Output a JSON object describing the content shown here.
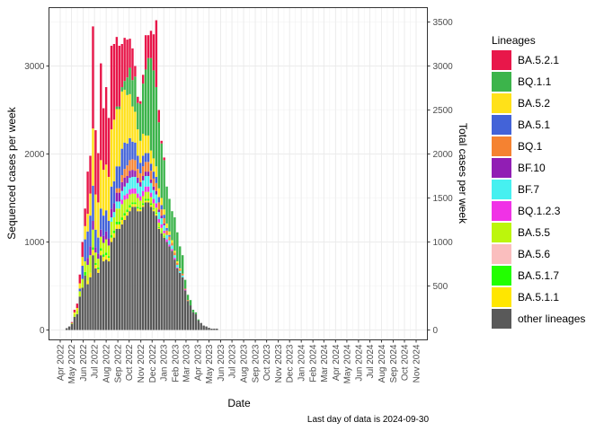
{
  "chart_data": {
    "type": "bar",
    "stacked": true,
    "xlabel": "Date",
    "ylabel": "Sequenced cases per week",
    "y2label": "Total cases per week",
    "caption": "Last day of data is 2024-09-30",
    "ylim": [
      0,
      3600
    ],
    "y_ticks": [
      0,
      1000,
      2000,
      3000
    ],
    "y2_ticks": [
      0,
      500,
      1000,
      1500,
      2000,
      2500,
      3000,
      3500
    ],
    "x_tick_labels": [
      "Apr 2022",
      "May 2022",
      "Jun 2022",
      "Jul 2022",
      "Aug 2022",
      "Sep 2022",
      "Oct 2022",
      "Nov 2022",
      "Dec 2022",
      "Jan 2023",
      "Feb 2023",
      "Mar 2023",
      "Apr 2023",
      "May 2023",
      "Jun 2023",
      "Jul 2023",
      "Aug 2023",
      "Sep 2023",
      "Oct 2023",
      "Nov 2023",
      "Dec 2023",
      "Jan 2024",
      "Feb 2024",
      "Mar 2024",
      "Apr 2024",
      "May 2024",
      "Jun 2024",
      "Jul 2024",
      "Aug 2024",
      "Sep 2024",
      "Oct 2024",
      "Nov 2024"
    ],
    "grid": true,
    "legend_position": "right",
    "legend_title": "Lineages",
    "colors": {
      "BA.5.2.1": "#e8174a",
      "BQ.1.1": "#3cb44b",
      "BA.5.2": "#ffe119",
      "BA.5.1": "#4363d8",
      "BQ.1": "#f58231",
      "BF.10": "#911eb4",
      "BF.7": "#46f0f0",
      "BQ.1.2.3": "#f032e6",
      "BA.5.5": "#bcf60c",
      "BA.5.6": "#fabebe",
      "BA.5.1.7": "#22ff00",
      "BA.5.1.1": "#ffe600",
      "other lineages": "#595959"
    },
    "series_order": [
      "other lineages",
      "BA.5.1.1",
      "BA.5.1.7",
      "BA.5.6",
      "BA.5.5",
      "BQ.1.2.3",
      "BF.7",
      "BF.10",
      "BQ.1",
      "BA.5.1",
      "BA.5.2",
      "BQ.1.1",
      "BA.5.2.1"
    ],
    "legend_order": [
      "BA.5.2.1",
      "BQ.1.1",
      "BA.5.2",
      "BA.5.1",
      "BQ.1",
      "BF.10",
      "BF.7",
      "BQ.1.2.3",
      "BA.5.5",
      "BA.5.6",
      "BA.5.1.7",
      "BA.5.1.1",
      "other lineages"
    ],
    "weeks": [
      {
        "date": "2022-04-18",
        "values": {
          "other lineages": 20
        }
      },
      {
        "date": "2022-04-25",
        "values": {
          "other lineages": 40
        }
      },
      {
        "date": "2022-05-02",
        "values": {
          "other lineages": 70,
          "BA.5.5": 10,
          "BA.5.2.1": 10
        }
      },
      {
        "date": "2022-05-09",
        "values": {
          "other lineages": 150,
          "BA.5.5": 30,
          "BA.5.2": 20,
          "BA.5.2.1": 30
        }
      },
      {
        "date": "2022-05-16",
        "values": {
          "other lineages": 180,
          "BA.5.5": 40,
          "BA.5.2": 30,
          "BA.5.2.1": 50
        }
      },
      {
        "date": "2022-05-23",
        "values": {
          "other lineages": 380,
          "BA.5.5": 60,
          "BA.5.2": 60,
          "BA.5.1": 30,
          "BA.5.2.1": 100
        }
      },
      {
        "date": "2022-05-30",
        "values": {
          "other lineages": 480,
          "BA.5.5": 100,
          "BA.5.2": 100,
          "BA.5.1": 150,
          "BA.5.2.1": 170
        }
      },
      {
        "date": "2022-06-06",
        "values": {
          "other lineages": 620,
          "BA.5.5": 120,
          "BA.5.1.7": 40,
          "BA.5.2": 150,
          "BA.5.1": 250,
          "BA.5.2.1": 200
        }
      },
      {
        "date": "2022-06-13",
        "values": {
          "other lineages": 520,
          "BA.5.1.1": 40,
          "BA.5.5": 180,
          "BF.10": 80,
          "BA.5.2": 200,
          "BA.5.1": 300,
          "BA.5.2.1": 480
        }
      },
      {
        "date": "2022-06-20",
        "values": {
          "other lineages": 600,
          "BA.5.1.1": 50,
          "BA.5.5": 200,
          "BF.10": 100,
          "BA.5.2": 250,
          "BA.5.1": 350,
          "BA.5.2.1": 430
        }
      },
      {
        "date": "2022-06-27",
        "values": {
          "other lineages": 850,
          "BA.5.1.1": 60,
          "BA.5.1.7": 30,
          "BA.5.5": 200,
          "BF.10": 100,
          "BA.5.2": 650,
          "BA.5.1": 400,
          "BA.5.2.1": 1160
        }
      },
      {
        "date": "2022-07-04",
        "values": {
          "other lineages": 700,
          "BA.5.1.1": 40,
          "BA.5.1.7": 20,
          "BA.5.5": 120,
          "BF.10": 60,
          "BA.5.2": 400,
          "BA.5.1": 200,
          "BA.5.2.1": 730
        }
      },
      {
        "date": "2022-07-11",
        "values": {
          "other lineages": 650,
          "BA.5.1.1": 40,
          "BA.5.1.7": 20,
          "BA.5.5": 100,
          "BF.10": 60,
          "BA.5.2": 400,
          "BA.5.1": 180,
          "BA.5.2.1": 560
        }
      },
      {
        "date": "2022-07-18",
        "values": {
          "other lineages": 850,
          "BA.5.1.1": 50,
          "BA.5.1.7": 30,
          "BA.5.5": 130,
          "BF.10": 80,
          "BA.5.2": 550,
          "BA.5.1": 240,
          "BA.5.2.1": 1100
        }
      },
      {
        "date": "2022-07-25",
        "values": {
          "other lineages": 780,
          "BA.5.1.1": 50,
          "BA.5.1.7": 30,
          "BA.5.5": 130,
          "BF.10": 80,
          "BA.5.2": 520,
          "BA.5.1": 230,
          "BA.5.2.1": 700
        }
      },
      {
        "date": "2022-08-01",
        "values": {
          "other lineages": 800,
          "BA.5.1.1": 50,
          "BA.5.1.7": 30,
          "BA.5.5": 150,
          "BF.10": 90,
          "BA.5.2": 520,
          "BA.5.1": 240,
          "BA.5.2.1": 880
        }
      },
      {
        "date": "2022-08-08",
        "values": {
          "other lineages": 780,
          "BA.5.1.1": 40,
          "BA.5.1.7": 20,
          "BA.5.5": 120,
          "BF.10": 80,
          "BA.5.2": 500,
          "BA.5.1": 200,
          "BA.5.2.1": 670
        }
      },
      {
        "date": "2022-08-15",
        "values": {
          "other lineages": 1000,
          "BA.5.1.1": 50,
          "BA.5.1.7": 30,
          "BA.5.5": 150,
          "BF.10": 100,
          "BF.7": 50,
          "BA.5.2": 650,
          "BA.5.1": 250,
          "BA.5.2.1": 950
        }
      },
      {
        "date": "2022-08-22",
        "values": {
          "other lineages": 1050,
          "BA.5.1.1": 50,
          "BA.5.1.7": 30,
          "BA.5.5": 150,
          "BF.10": 100,
          "BF.7": 60,
          "BA.5.2": 700,
          "BA.5.1": 250,
          "BA.5.2.1": 860
        }
      },
      {
        "date": "2022-08-29",
        "values": {
          "other lineages": 1150,
          "BA.5.1.1": 50,
          "BA.5.1.7": 30,
          "BA.5.5": 150,
          "BF.10": 100,
          "BF.7": 80,
          "BQ.1": 50,
          "BA.5.2": 650,
          "BA.5.1": 250,
          "BQ.1.1": 30,
          "BA.5.2.1": 790
        }
      },
      {
        "date": "2022-09-05",
        "values": {
          "other lineages": 1150,
          "BA.5.1.1": 50,
          "BA.5.1.7": 30,
          "BA.5.5": 150,
          "BF.10": 100,
          "BF.7": 80,
          "BQ.1": 50,
          "BA.5.2": 650,
          "BA.5.1": 250,
          "BQ.1.1": 30,
          "BA.5.2.1": 690
        }
      },
      {
        "date": "2022-09-12",
        "values": {
          "other lineages": 1200,
          "BA.5.1.1": 50,
          "BA.5.1.7": 30,
          "BA.5.5": 150,
          "BF.10": 100,
          "BF.7": 100,
          "BQ.1.2.3": 50,
          "BQ.1": 80,
          "BA.5.2": 650,
          "BA.5.1": 300,
          "BQ.1.1": 50,
          "BA.5.2.1": 490
        }
      },
      {
        "date": "2022-09-19",
        "values": {
          "other lineages": 1250,
          "BA.5.1.1": 50,
          "BA.5.1.7": 30,
          "BA.5.5": 150,
          "BF.10": 100,
          "BF.7": 100,
          "BQ.1.2.3": 50,
          "BQ.1": 100,
          "BA.5.2": 600,
          "BA.5.1": 300,
          "BQ.1.1": 100,
          "BA.5.2.1": 490
        }
      },
      {
        "date": "2022-09-26",
        "values": {
          "other lineages": 1300,
          "BA.5.1.1": 40,
          "BA.5.1.7": 30,
          "BA.5.5": 120,
          "BF.10": 80,
          "BF.7": 120,
          "BQ.1.2.3": 60,
          "BQ.1": 120,
          "BA.5.2": 550,
          "BA.5.1": 250,
          "BQ.1.1": 200,
          "BA.5.2.1": 430
        }
      },
      {
        "date": "2022-10-03",
        "values": {
          "other lineages": 1350,
          "BA.5.1.1": 40,
          "BA.5.1.7": 30,
          "BA.5.5": 120,
          "BF.10": 80,
          "BF.7": 130,
          "BQ.1.2.3": 60,
          "BQ.1": 120,
          "BA.5.2": 500,
          "BA.5.1": 250,
          "BQ.1.1": 300,
          "BA.5.2.1": 330
        }
      },
      {
        "date": "2022-10-10",
        "values": {
          "other lineages": 1400,
          "BA.5.1.1": 30,
          "BA.5.1.7": 20,
          "BA.5.5": 100,
          "BF.10": 80,
          "BF.7": 130,
          "BQ.1.2.3": 60,
          "BQ.1": 120,
          "BA.5.2": 400,
          "BA.5.1": 200,
          "BQ.1.1": 300,
          "BA.5.2.1": 360
        }
      },
      {
        "date": "2022-10-17",
        "values": {
          "other lineages": 1400,
          "BA.5.1.1": 30,
          "BA.5.1.7": 20,
          "BA.5.5": 100,
          "BF.10": 70,
          "BF.7": 130,
          "BQ.1.2.3": 60,
          "BQ.1": 120,
          "BA.5.2": 350,
          "BA.5.1": 200,
          "BQ.1.1": 400,
          "BA.5.2.1": 120
        }
      },
      {
        "date": "2022-10-24",
        "values": {
          "other lineages": 1350,
          "BA.5.1.1": 30,
          "BA.5.1.7": 20,
          "BA.5.5": 100,
          "BF.10": 60,
          "BF.7": 120,
          "BQ.1.2.3": 50,
          "BQ.1": 100,
          "BA.5.2": 300,
          "BA.5.1": 150,
          "BQ.1.1": 300,
          "BA.5.2.1": 70
        }
      },
      {
        "date": "2022-10-31",
        "values": {
          "other lineages": 1350,
          "BA.5.1.1": 20,
          "BA.5.1.7": 20,
          "BA.5.5": 80,
          "BF.10": 50,
          "BF.7": 110,
          "BQ.1.2.3": 50,
          "BQ.1": 100,
          "BA.5.2": 250,
          "BA.5.1": 120,
          "BQ.1.1": 420,
          "BA.5.2.1": 30
        }
      },
      {
        "date": "2022-11-07",
        "values": {
          "other lineages": 1400,
          "BA.5.1.1": 20,
          "BA.5.1.7": 20,
          "BA.5.5": 80,
          "BF.10": 50,
          "BF.7": 120,
          "BQ.1.2.3": 60,
          "BQ.1": 110,
          "BA.5.2": 250,
          "BA.5.1": 120,
          "BQ.1.1": 570,
          "BA.5.2.1": 100
        }
      },
      {
        "date": "2022-11-14",
        "values": {
          "other lineages": 1450,
          "BA.5.1.1": 20,
          "BA.5.1.7": 20,
          "BA.5.5": 80,
          "BF.10": 50,
          "BF.7": 120,
          "BQ.1.2.3": 60,
          "BQ.1": 110,
          "BA.5.2": 200,
          "BA.5.1": 100,
          "BQ.1.1": 750,
          "BA.5.2.1": 390
        }
      },
      {
        "date": "2022-11-21",
        "values": {
          "other lineages": 1450,
          "BA.5.1.1": 20,
          "BA.5.1.7": 20,
          "BA.5.5": 80,
          "BF.10": 50,
          "BF.7": 120,
          "BQ.1.2.3": 60,
          "BQ.1": 110,
          "BA.5.2": 200,
          "BA.5.1": 100,
          "BQ.1.1": 880,
          "BA.5.2.1": 260
        }
      },
      {
        "date": "2022-11-28",
        "values": {
          "other lineages": 1400,
          "BA.5.1.1": 20,
          "BA.5.1.7": 20,
          "BA.5.5": 70,
          "BF.10": 40,
          "BF.7": 110,
          "BQ.1.2.3": 50,
          "BQ.1": 100,
          "BA.5.2": 150,
          "BA.5.1": 80,
          "BQ.1.1": 1050,
          "BA.5.2.1": 310
        }
      },
      {
        "date": "2022-12-05",
        "values": {
          "other lineages": 1350,
          "BA.5.1.1": 20,
          "BA.5.1.7": 10,
          "BA.5.5": 60,
          "BF.10": 40,
          "BF.7": 100,
          "BQ.1.2.3": 50,
          "BQ.1": 90,
          "BA.5.2": 150,
          "BA.5.1": 80,
          "BQ.1.1": 1000,
          "BA.5.2.1": 410
        }
      },
      {
        "date": "2022-12-12",
        "values": {
          "other lineages": 1300,
          "BA.5.1.1": 20,
          "BA.5.1.7": 10,
          "BA.5.5": 60,
          "BF.10": 40,
          "BF.7": 100,
          "BQ.1.2.3": 50,
          "BQ.1": 90,
          "BA.5.2": 120,
          "BA.5.1": 70,
          "BQ.1.1": 900,
          "BA.5.2.1": 760
        }
      },
      {
        "date": "2022-12-19",
        "values": {
          "other lineages": 1150,
          "BA.5.1.1": 10,
          "BA.5.1.7": 10,
          "BA.5.5": 50,
          "BF.10": 30,
          "BF.7": 80,
          "BQ.1.2.3": 40,
          "BQ.1": 80,
          "BA.5.2": 100,
          "BA.5.1": 60,
          "BQ.1.1": 750,
          "BA.5.2.1": 140
        }
      },
      {
        "date": "2022-12-26",
        "values": {
          "other lineages": 1100,
          "BA.5.1.1": 10,
          "BA.5.1.7": 10,
          "BA.5.5": 40,
          "BF.10": 30,
          "BF.7": 70,
          "BQ.1.2.3": 40,
          "BQ.1": 70,
          "BA.5.2": 80,
          "BA.5.1": 50,
          "BQ.1.1": 620,
          "BA.5.2.1": 30
        }
      },
      {
        "date": "2023-01-02",
        "values": {
          "other lineages": 1050,
          "BA.5.1.1": 10,
          "BA.5.1.7": 10,
          "BA.5.5": 30,
          "BF.10": 20,
          "BF.7": 60,
          "BQ.1.2.3": 30,
          "BQ.1": 60,
          "BA.5.2": 60,
          "BA.5.1": 40,
          "BQ.1.1": 560,
          "BA.5.2.1": 30
        }
      },
      {
        "date": "2023-01-09",
        "values": {
          "other lineages": 1000,
          "BF.7": 50,
          "BQ.1.2.3": 30,
          "BQ.1": 50,
          "BA.5.2": 50,
          "BA.5.1": 30,
          "BQ.1.1": 420
        }
      },
      {
        "date": "2023-01-16",
        "values": {
          "other lineages": 950,
          "BF.7": 50,
          "BQ.1.2.3": 20,
          "BQ.1": 40,
          "BA.5.2": 40,
          "BA.5.1": 20,
          "BQ.1.1": 370
        }
      },
      {
        "date": "2023-01-23",
        "values": {
          "other lineages": 900,
          "BF.7": 40,
          "BQ.1.2.3": 20,
          "BQ.1": 30,
          "BA.5.2": 30,
          "BQ.1.1": 330
        }
      },
      {
        "date": "2023-01-30",
        "values": {
          "other lineages": 800,
          "BF.7": 30,
          "BQ.1.2.3": 20,
          "BQ.1": 30,
          "BA.5.2": 20,
          "BQ.1.1": 380
        }
      },
      {
        "date": "2023-02-06",
        "values": {
          "other lineages": 700,
          "BF.7": 30,
          "BQ.1.2.3": 10,
          "BQ.1": 20,
          "BA.5.2": 20,
          "BQ.1.1": 330
        }
      },
      {
        "date": "2023-02-13",
        "values": {
          "other lineages": 650,
          "BF.7": 20,
          "BQ.1": 20,
          "BA.5.2": 10,
          "BQ.1.1": 250
        }
      },
      {
        "date": "2023-02-20",
        "values": {
          "other lineages": 600,
          "BF.7": 20,
          "BQ.1": 20,
          "BQ.1.1": 210
        }
      },
      {
        "date": "2023-02-27",
        "values": {
          "other lineages": 450,
          "BQ.1.2.3": 10,
          "BQ.1": 10,
          "BQ.1.1": 100
        }
      },
      {
        "date": "2023-03-06",
        "values": {
          "other lineages": 330,
          "BQ.1": 10,
          "BQ.1.1": 60
        }
      },
      {
        "date": "2023-03-13",
        "values": {
          "other lineages": 280,
          "BQ.1.1": 60
        }
      },
      {
        "date": "2023-03-20",
        "values": {
          "other lineages": 200,
          "BQ.1.1": 30
        }
      },
      {
        "date": "2023-03-27",
        "values": {
          "other lineages": 180,
          "BQ.1.1": 20
        }
      },
      {
        "date": "2023-04-03",
        "values": {
          "other lineages": 110,
          "BQ.1.1": 10
        }
      },
      {
        "date": "2023-04-10",
        "values": {
          "other lineages": 80
        }
      },
      {
        "date": "2023-04-17",
        "values": {
          "other lineages": 50
        }
      },
      {
        "date": "2023-04-24",
        "values": {
          "other lineages": 40
        }
      },
      {
        "date": "2023-05-01",
        "values": {
          "other lineages": 25
        }
      },
      {
        "date": "2023-05-08",
        "values": {
          "other lineages": 15
        }
      },
      {
        "date": "2023-05-15",
        "values": {
          "other lineages": 15
        }
      },
      {
        "date": "2023-05-22",
        "values": {
          "other lineages": 15
        }
      }
    ]
  }
}
